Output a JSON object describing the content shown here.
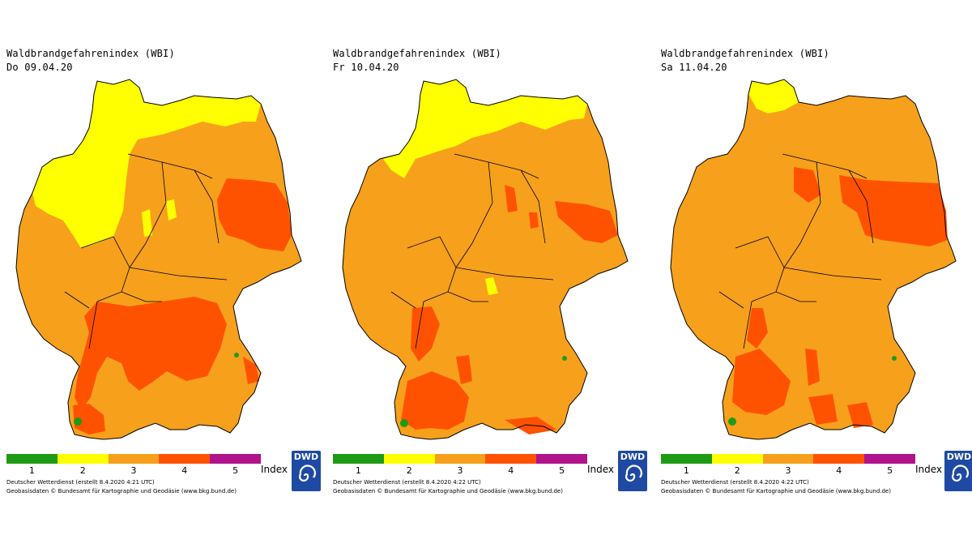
{
  "colors": {
    "lvl1": "#1e9a14",
    "lvl2": "#ffff00",
    "lvl3": "#f7a01c",
    "lvl4": "#ff5200",
    "lvl5": "#b0138b",
    "border": "#000000",
    "logo": "#1f4aa3"
  },
  "panels": [
    {
      "title": "Waldbrandgefahrenindex (WBI)",
      "date": "Do 09.04.20",
      "legend": {
        "labels": [
          "1",
          "2",
          "3",
          "4",
          "5"
        ],
        "index_label": "Index"
      },
      "logo_text": "DWD",
      "credit": "Deutscher Wetterdienst (erstellt 8.4.2020 4:21 UTC)",
      "geobasis": "Geobasisdaten © Bundesamt für Kartographie und Geodäsie (www.bkg.bund.de)"
    },
    {
      "title": "Waldbrandgefahrenindex (WBI)",
      "date": "Fr 10.04.20",
      "legend": {
        "labels": [
          "1",
          "2",
          "3",
          "4",
          "5"
        ],
        "index_label": "Index"
      },
      "logo_text": "DWD",
      "credit": "Deutscher Wetterdienst (erstellt 8.4.2020 4:22 UTC)",
      "geobasis": "Geobasisdaten © Bundesamt für Kartographie und Geodäsie (www.bkg.bund.de)"
    },
    {
      "title": "Waldbrandgefahrenindex (WBI)",
      "date": "Sa 11.04.20",
      "legend": {
        "labels": [
          "1",
          "2",
          "3",
          "4",
          "5"
        ],
        "index_label": "Index"
      },
      "logo_text": "DWD",
      "credit": "Deutscher Wetterdienst (erstellt 8.4.2020 4:22 UTC)",
      "geobasis": "Geobasisdaten © Bundesamt für Kartographie und Geodäsie (www.bkg.bund.de)"
    }
  ]
}
